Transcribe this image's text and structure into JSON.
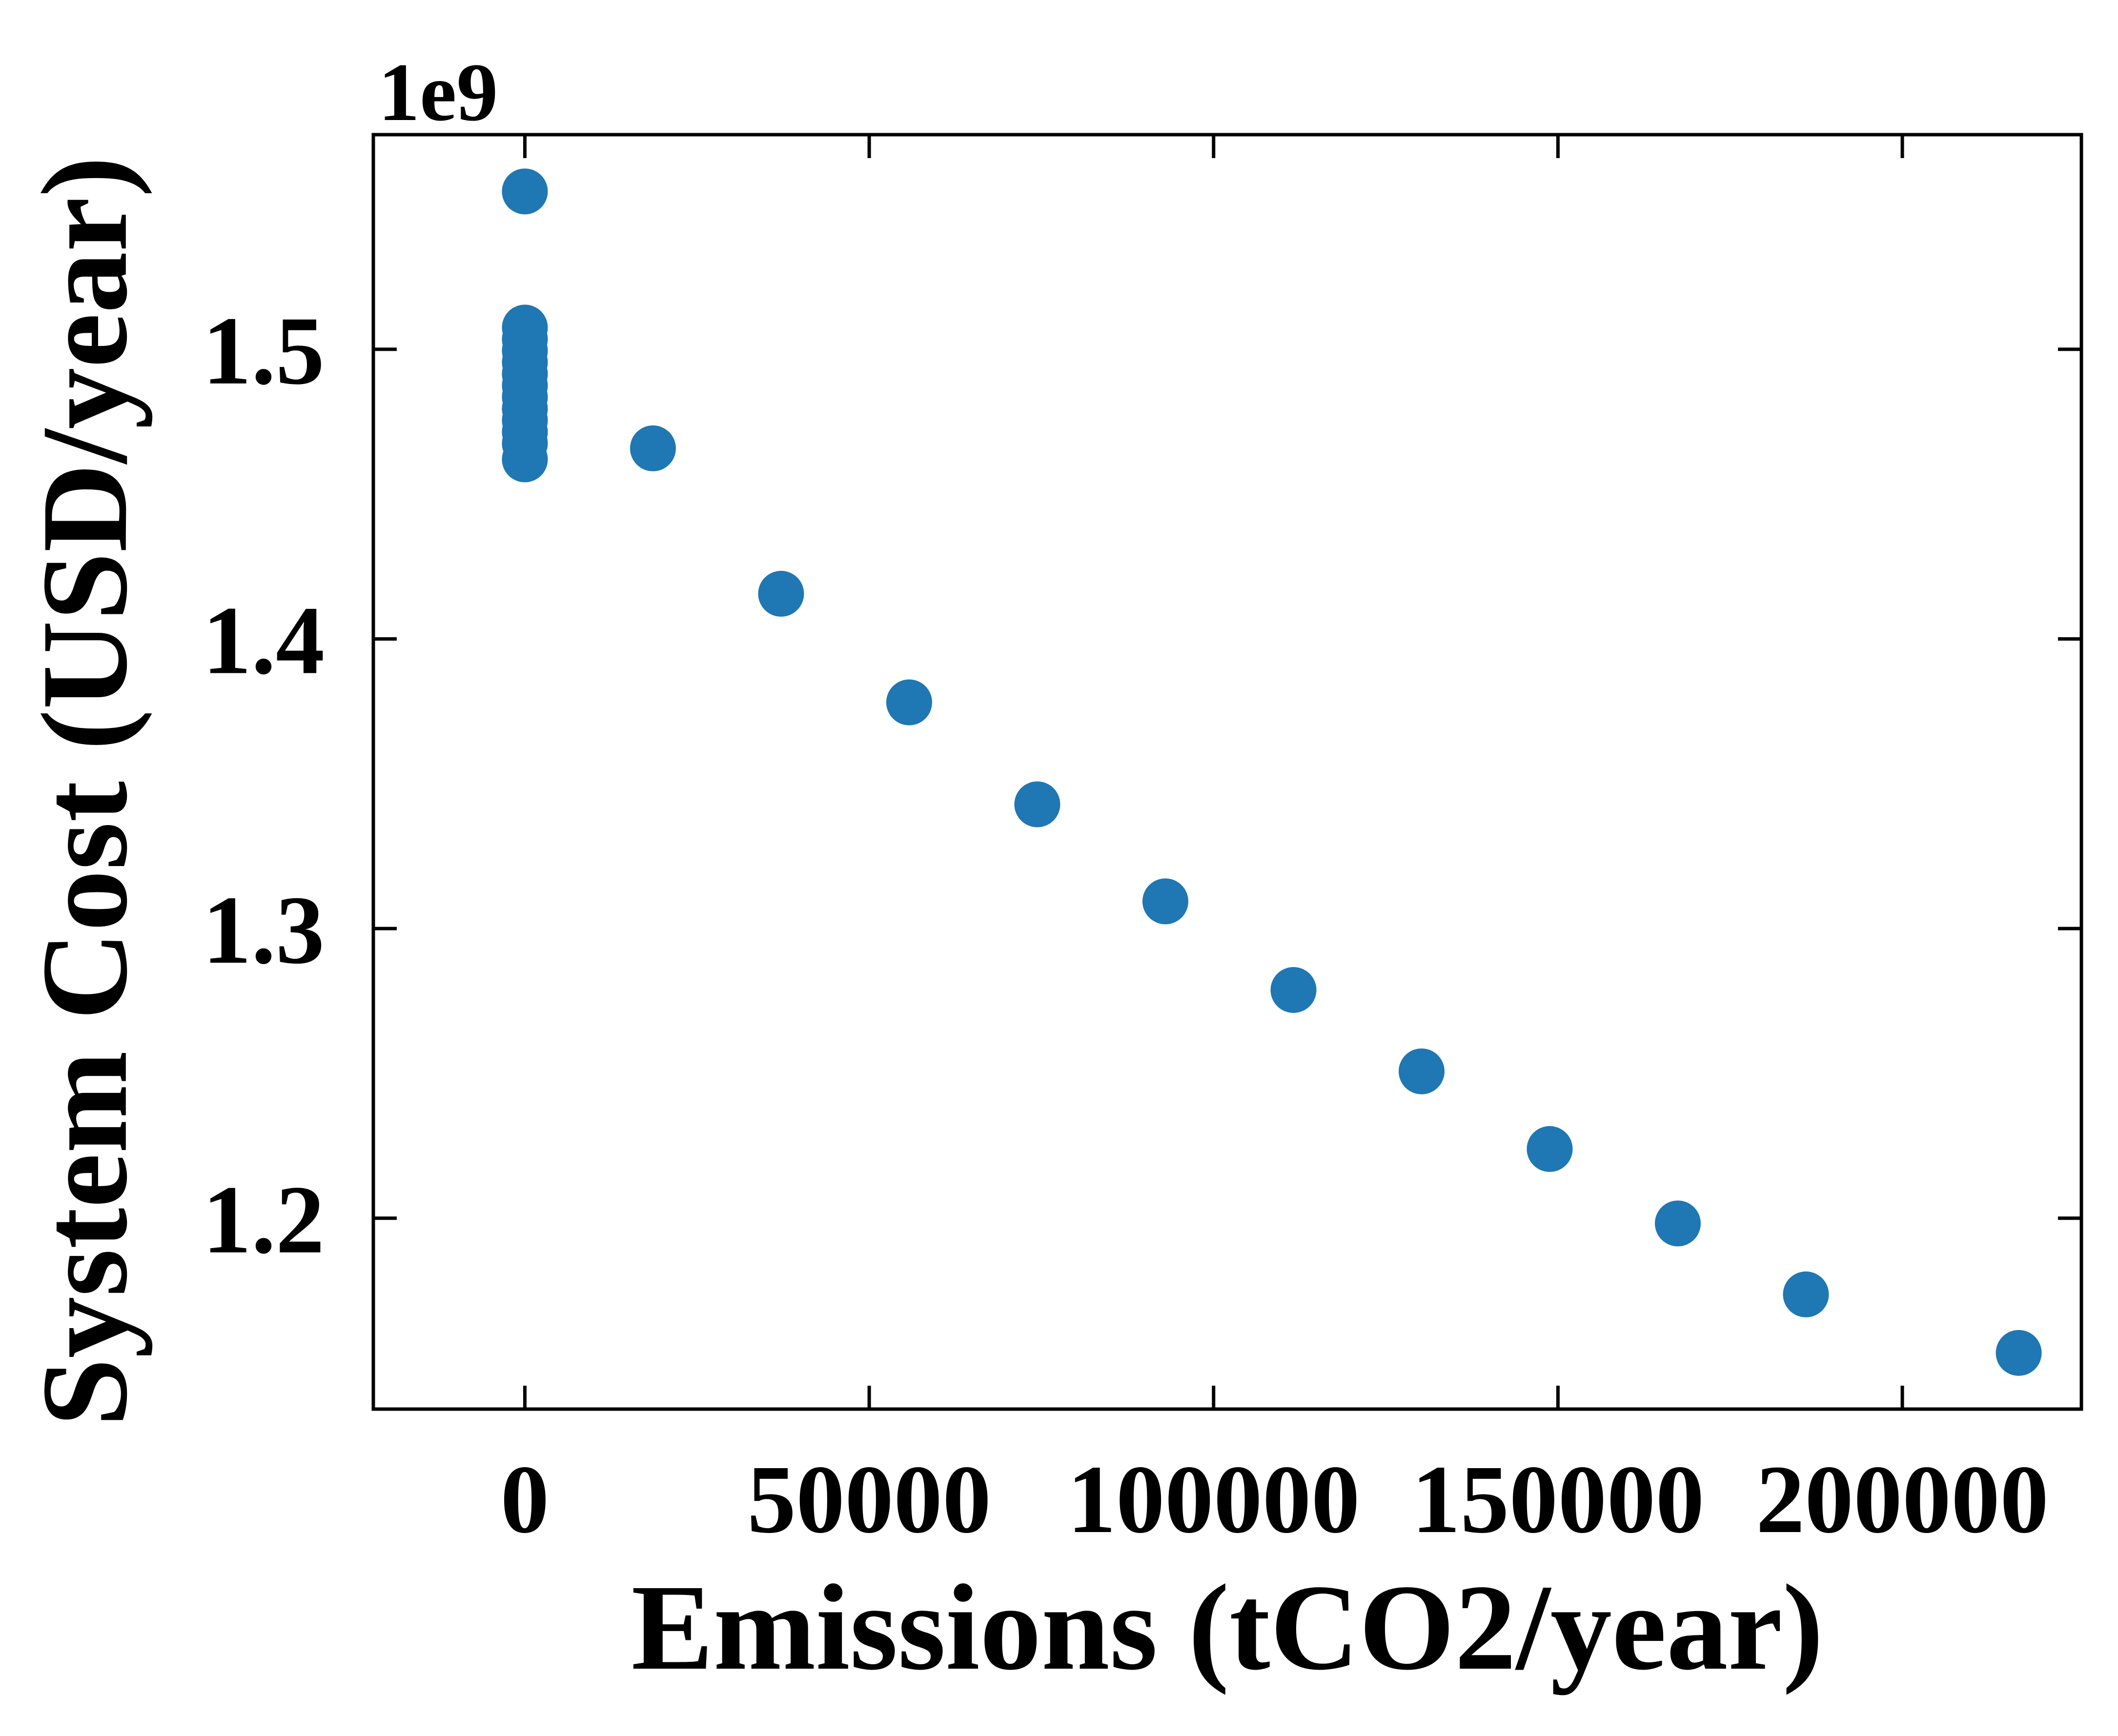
{
  "chart_data": {
    "type": "scatter",
    "xlabel": "Emissions (tCO2/year)",
    "ylabel": "System Cost (USD/year)",
    "y_offset_label": "1e9",
    "xlim": [
      -22000,
      226000
    ],
    "ylim": [
      1.1341,
      1.5741
    ],
    "x_ticks": [
      0,
      50000,
      100000,
      150000,
      200000
    ],
    "x_tick_labels": [
      "0",
      "50000",
      "100000",
      "150000",
      "200000"
    ],
    "y_ticks": [
      1.2,
      1.3,
      1.4,
      1.5
    ],
    "y_tick_labels": [
      "1.2",
      "1.3",
      "1.4",
      "1.5"
    ],
    "grid": false,
    "marker_color": "#1f77b4",
    "series": [
      {
        "points": [
          {
            "x": 0,
            "y": 1.5545
          },
          {
            "x": 0,
            "y": 1.5075
          },
          {
            "x": 0,
            "y": 1.5035
          },
          {
            "x": 0,
            "y": 1.4995
          },
          {
            "x": 0,
            "y": 1.4955
          },
          {
            "x": 0,
            "y": 1.4915
          },
          {
            "x": 0,
            "y": 1.4875
          },
          {
            "x": 0,
            "y": 1.4835
          },
          {
            "x": 0,
            "y": 1.4795
          },
          {
            "x": 0,
            "y": 1.4755
          },
          {
            "x": 0,
            "y": 1.4715
          },
          {
            "x": 0,
            "y": 1.4675
          },
          {
            "x": 0,
            "y": 1.462
          },
          {
            "x": 18600,
            "y": 1.4658
          },
          {
            "x": 37200,
            "y": 1.4156
          },
          {
            "x": 55800,
            "y": 1.3781
          },
          {
            "x": 74400,
            "y": 1.3429
          },
          {
            "x": 93000,
            "y": 1.3094
          },
          {
            "x": 111600,
            "y": 1.2788
          },
          {
            "x": 130200,
            "y": 1.2507
          },
          {
            "x": 148800,
            "y": 1.2239
          },
          {
            "x": 167400,
            "y": 1.1982
          },
          {
            "x": 186000,
            "y": 1.1737
          },
          {
            "x": 216900,
            "y": 1.1535
          }
        ]
      }
    ]
  }
}
